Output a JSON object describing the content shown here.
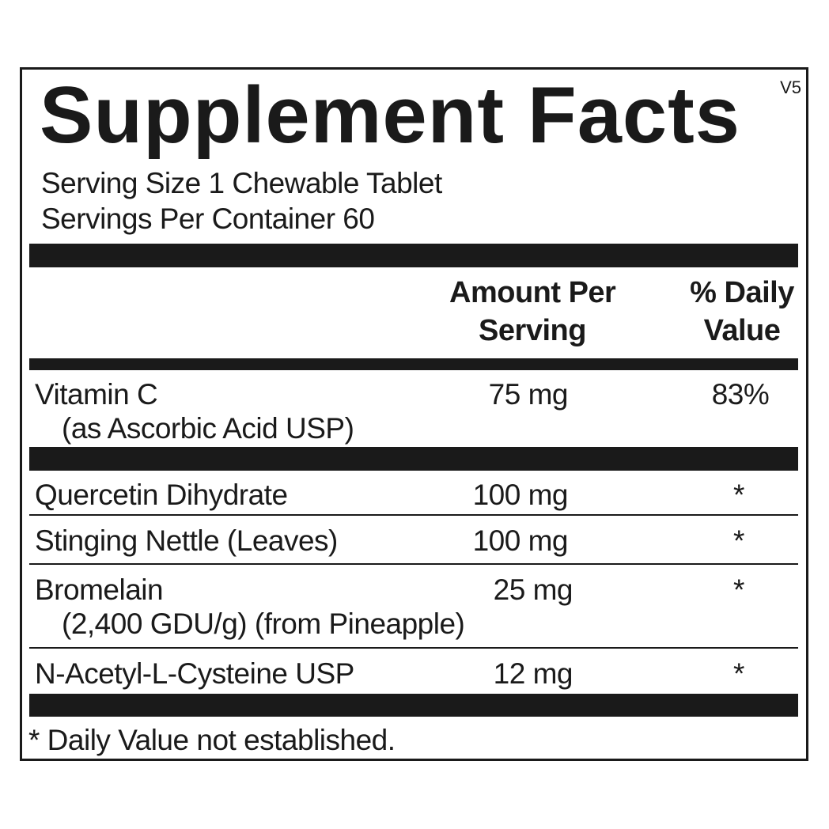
{
  "title": "Supplement Facts",
  "version": "V5",
  "serving_size": "Serving Size 1 Chewable Tablet",
  "servings_per_container": "Servings Per Container 60",
  "header": {
    "amount_line1": "Amount Per",
    "amount_line2": "Serving",
    "dv_line1": "% Daily",
    "dv_line2": "Value"
  },
  "rows": [
    {
      "name": "Vitamin C",
      "sub": "(as Ascorbic Acid USP)",
      "amount": "75 mg",
      "dv": "83%"
    },
    {
      "name": "Quercetin Dihydrate",
      "amount": "100 mg",
      "dv": "*"
    },
    {
      "name": "Stinging Nettle (Leaves)",
      "amount": "100 mg",
      "dv": "*"
    },
    {
      "name": "Bromelain",
      "sub": "(2,400 GDU/g) (from Pineapple)",
      "amount": "25 mg",
      "dv": "*"
    },
    {
      "name": "N-Acetyl-L-Cysteine USP",
      "amount": "12 mg",
      "dv": "*"
    }
  ],
  "footnote": "* Daily Value not established."
}
